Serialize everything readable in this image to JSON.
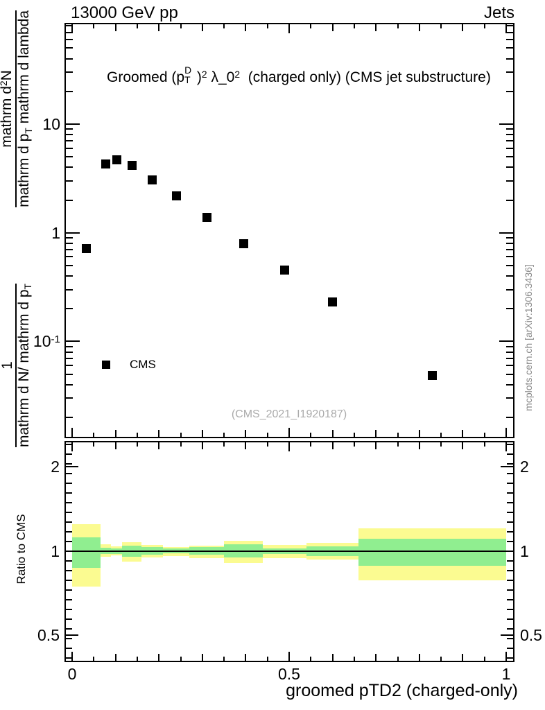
{
  "header": {
    "left": "13000 GeV pp",
    "right": "Jets"
  },
  "panel_title": {
    "parts": [
      {
        "t": "Groomed "
      },
      {
        "t": "(p"
      },
      {
        "ss": {
          "sup": "D",
          "sub": "T"
        }
      },
      {
        "t": ")"
      },
      {
        "sup": "2"
      },
      {
        "t": " λ_0"
      },
      {
        "sup": "2"
      },
      {
        "t": "  (charged only) (CMS jet substructure)"
      }
    ]
  },
  "legend": {
    "label": "CMS",
    "marker_color": "#000000"
  },
  "watermark": "(CMS_2021_I1920187)",
  "side_note": "mcplots.cern.ch [arXiv:1306.3436]",
  "ratio_axis_label": "Ratio to CMS",
  "x_axis_label": "groomed pTD2 (charged-only)",
  "y_axis_label": {
    "frac1": {
      "num_parts": [
        {
          "t": "1"
        }
      ],
      "den_parts": [
        {
          "t": "mathrm d N/ mathrm d p"
        },
        {
          "sub": "T"
        }
      ]
    },
    "frac2": {
      "num_parts": [
        {
          "t": "mathrm d"
        },
        {
          "sup": "2"
        },
        {
          "t": "N"
        }
      ],
      "den_parts": [
        {
          "t": "mathrm d p"
        },
        {
          "sub": "T"
        },
        {
          "t": " mathrm d lambda"
        }
      ]
    }
  },
  "axes": {
    "x": {
      "range": [
        -0.018,
        1.019
      ],
      "minor_step": 0.05,
      "ticks": [
        {
          "v": 0,
          "label": "0"
        },
        {
          "v": 0.5,
          "label": "0.5"
        },
        {
          "v": 1,
          "label": "1"
        }
      ]
    },
    "y_top": {
      "scale": "log",
      "range": [
        0.0125,
        85
      ],
      "ticks": [
        {
          "v": 10,
          "parts": [
            {
              "t": "10"
            }
          ]
        },
        {
          "v": 1,
          "parts": [
            {
              "t": "1"
            }
          ]
        },
        {
          "v": 0.1,
          "parts": [
            {
              "t": "10"
            },
            {
              "sup": "-1"
            }
          ]
        }
      ]
    },
    "ratio": {
      "scale": "log",
      "range": [
        0.4,
        2.49
      ],
      "ticks": [
        {
          "v": 2,
          "label": "2"
        },
        {
          "v": 1,
          "label": "1"
        },
        {
          "v": 0.5,
          "label": "0.5"
        }
      ]
    }
  },
  "chart_data": {
    "type": "scatter",
    "title": "Groomed (p_T^D)^2 lambda_0^2 (charged only) (CMS jet substructure)",
    "xlabel": "groomed pTD2 (charged-only)",
    "ylabel": "1/(dN/dp_T) d2N/(dp_T dlambda)",
    "x_range": [
      -0.018,
      1.019
    ],
    "y_scale": "log",
    "series": [
      {
        "name": "CMS",
        "marker": "filled-square",
        "color": "#000000",
        "x": [
          0.0325,
          0.0775,
          0.1025,
          0.1375,
          0.185,
          0.24,
          0.31,
          0.395,
          0.49,
          0.6,
          0.83
        ],
        "y": [
          0.72,
          4.31,
          4.66,
          4.16,
          3.07,
          2.19,
          1.38,
          0.79,
          0.455,
          0.232,
          0.0485
        ]
      }
    ],
    "bin_edges": [
      0,
      0.065,
      0.09,
      0.115,
      0.16,
      0.21,
      0.27,
      0.35,
      0.44,
      0.54,
      0.66,
      1.0
    ],
    "ratio_panel": {
      "ylabel": "Ratio to CMS",
      "reference_line": 1.0,
      "yellow_color": "#FBFB91",
      "green_color": "#90EE90",
      "bands": [
        {
          "yellow": [
            0.745,
            1.245
          ],
          "green": [
            0.87,
            1.12
          ]
        },
        {
          "yellow": [
            0.95,
            1.055
          ],
          "green": [
            0.972,
            1.025
          ]
        },
        {
          "yellow": [
            0.963,
            1.038
          ],
          "green": [
            0.977,
            1.021
          ]
        },
        {
          "yellow": [
            0.915,
            1.075
          ],
          "green": [
            0.953,
            1.044
          ]
        },
        {
          "yellow": [
            0.946,
            1.048
          ],
          "green": [
            0.968,
            1.029
          ]
        },
        {
          "yellow": [
            0.959,
            1.029
          ],
          "green": [
            0.981,
            1.019
          ]
        },
        {
          "yellow": [
            0.941,
            1.044
          ],
          "green": [
            0.968,
            1.031
          ]
        },
        {
          "yellow": [
            0.906,
            1.089
          ],
          "green": [
            0.945,
            1.054
          ]
        },
        {
          "yellow": [
            0.941,
            1.048
          ],
          "green": [
            0.972,
            1.021
          ]
        },
        {
          "yellow": [
            0.929,
            1.068
          ],
          "green": [
            0.959,
            1.035
          ]
        },
        {
          "yellow": [
            0.785,
            1.204
          ],
          "green": [
            0.885,
            1.102
          ]
        }
      ]
    }
  }
}
